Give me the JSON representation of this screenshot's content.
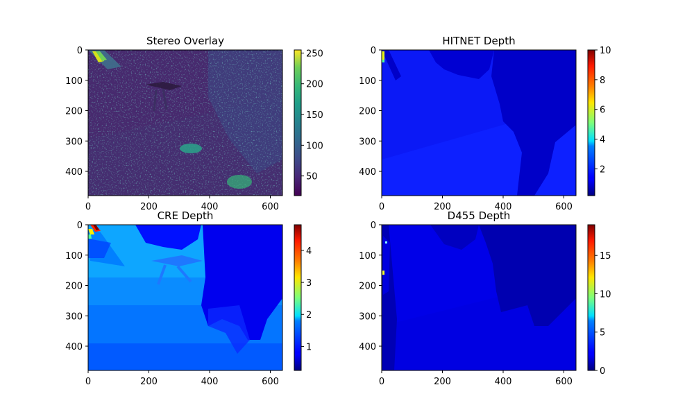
{
  "figure": {
    "background": "#ffffff"
  },
  "chart_data": [
    {
      "type": "heatmap",
      "title": "Stereo Overlay",
      "colormap": "viridis",
      "image_size": [
        640,
        480
      ],
      "x_ticks": [
        0,
        200,
        400,
        600
      ],
      "y_ticks": [
        0,
        100,
        200,
        300,
        400
      ],
      "xlim": [
        0,
        640
      ],
      "ylim": [
        480,
        0
      ],
      "colorbar": {
        "range": [
          18,
          255
        ],
        "ticks": [
          50,
          100,
          150,
          200,
          250
        ]
      }
    },
    {
      "type": "heatmap",
      "title": "HITNET Depth",
      "colormap": "jet",
      "image_size": [
        640,
        480
      ],
      "x_ticks": [
        0,
        200,
        400,
        600
      ],
      "y_ticks": [
        0,
        100,
        200,
        300,
        400
      ],
      "xlim": [
        0,
        640
      ],
      "ylim": [
        480,
        0
      ],
      "colorbar": {
        "range": [
          0.2,
          10
        ],
        "ticks": [
          2,
          4,
          6,
          8,
          10
        ]
      }
    },
    {
      "type": "heatmap",
      "title": "CRE Depth",
      "colormap": "jet",
      "image_size": [
        640,
        480
      ],
      "x_ticks": [
        0,
        200,
        400,
        600
      ],
      "y_ticks": [
        0,
        100,
        200,
        300,
        400
      ],
      "xlim": [
        0,
        640
      ],
      "ylim": [
        480,
        0
      ],
      "colorbar": {
        "range": [
          0.25,
          4.8
        ],
        "ticks": [
          1,
          2,
          3,
          4
        ]
      }
    },
    {
      "type": "heatmap",
      "title": "D455 Depth",
      "colormap": "jet",
      "image_size": [
        640,
        480
      ],
      "x_ticks": [
        0,
        200,
        400,
        600
      ],
      "y_ticks": [
        0,
        100,
        200,
        300,
        400
      ],
      "xlim": [
        0,
        640
      ],
      "ylim": [
        480,
        0
      ],
      "colorbar": {
        "range": [
          0,
          19
        ],
        "ticks": [
          0,
          5,
          10,
          15
        ]
      }
    }
  ]
}
